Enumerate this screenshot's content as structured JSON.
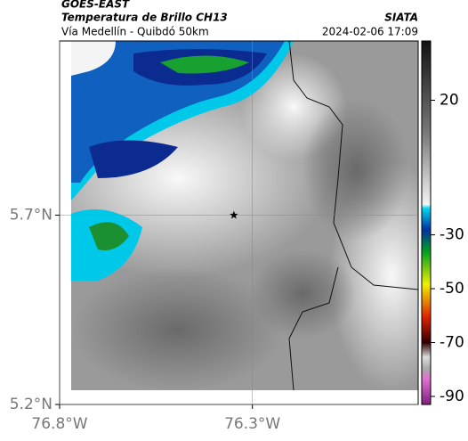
{
  "chart_data": {
    "type": "map",
    "title": "GOES-EAST",
    "subtitle": "Temperatura de Brillo CH13",
    "route": "Vía Medellín - Quibdó 50km",
    "source": "SIATA",
    "timestamp": "2024-02-06 17:09",
    "xlim": [
      -76.8,
      -75.87
    ],
    "ylim": [
      5.2,
      6.16
    ],
    "xticks": [
      {
        "value": -76.8,
        "label": "76.8°W"
      },
      {
        "value": -76.3,
        "label": "76.3°W"
      }
    ],
    "yticks": [
      {
        "value": 5.7,
        "label": "5.7°N"
      },
      {
        "value": 5.2,
        "label": "5.2°N"
      }
    ],
    "grid": true,
    "marker": {
      "lon": -76.348,
      "lat": 5.7
    },
    "clim": [
      -93,
      42
    ],
    "cticks": [
      20,
      -30,
      -50,
      -70,
      -90
    ]
  }
}
